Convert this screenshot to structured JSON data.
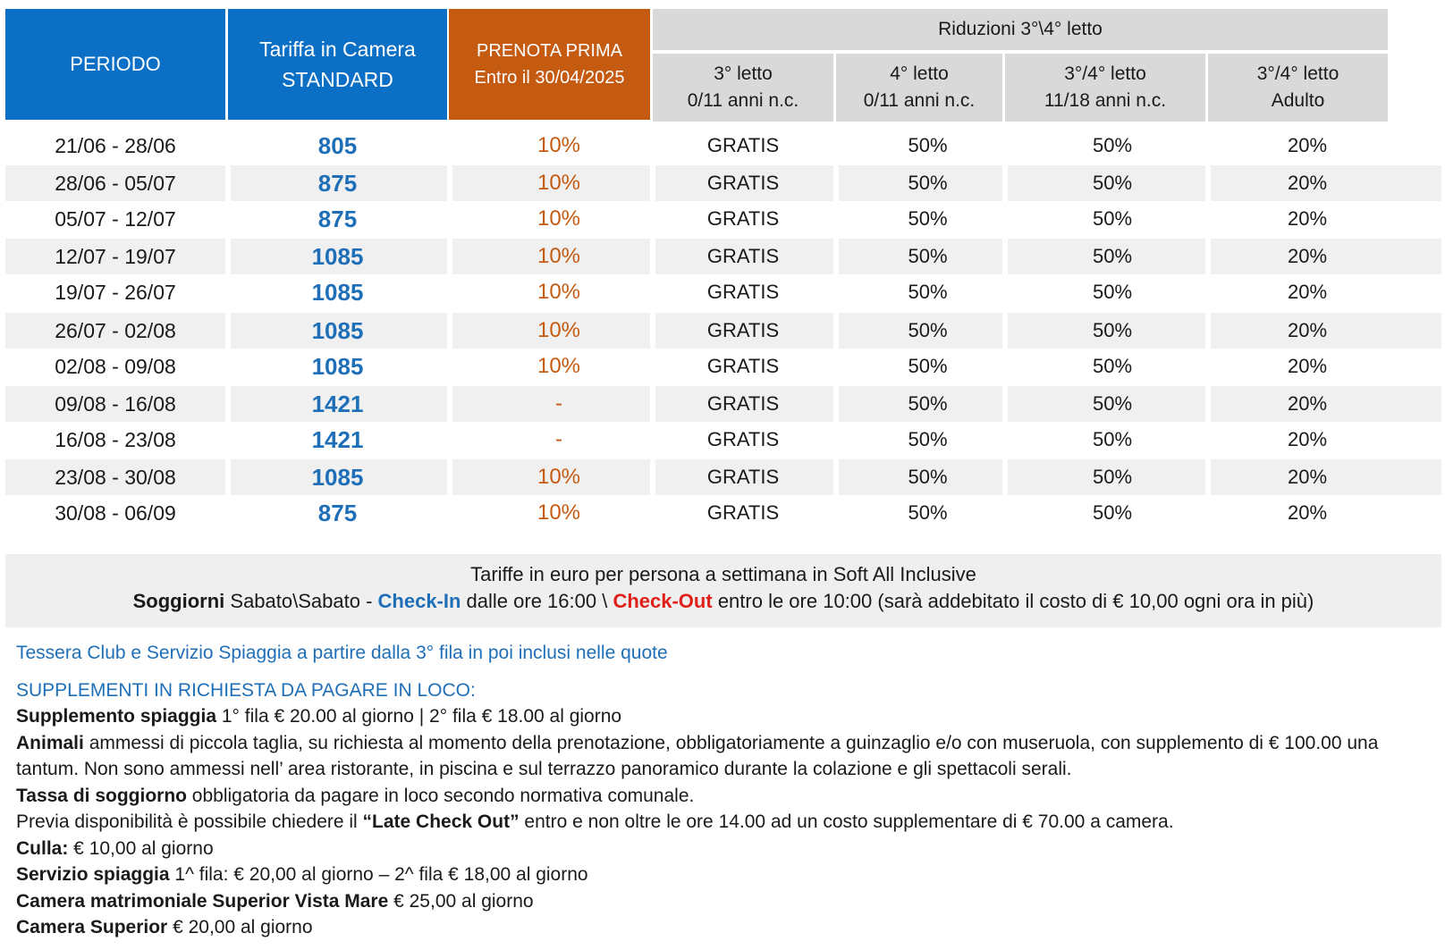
{
  "header": {
    "periodo": "PERIODO",
    "tariffa_line1": "Tariffa in Camera",
    "tariffa_line2": "STANDARD",
    "prenota_line1": "PRENOTA PRIMA",
    "prenota_line2": "Entro il 30/04/2025",
    "riduzioni": "Riduzioni 3°\\4° letto",
    "sub": [
      {
        "line1": "3° letto",
        "line2": "0/11 anni n.c."
      },
      {
        "line1": "4° letto",
        "line2": "0/11 anni n.c."
      },
      {
        "line1": "3°/4° letto",
        "line2": "11/18 anni n.c."
      },
      {
        "line1": "3°/4° letto",
        "line2": "Adulto"
      }
    ]
  },
  "rows": [
    {
      "period": "21/06 - 28/06",
      "price": "805",
      "prenota": "10%",
      "r1": "GRATIS",
      "r2": "50%",
      "r3": "50%",
      "r4": "20%"
    },
    {
      "period": "28/06 - 05/07",
      "price": "875",
      "prenota": "10%",
      "r1": "GRATIS",
      "r2": "50%",
      "r3": "50%",
      "r4": "20%"
    },
    {
      "period": "05/07 - 12/07",
      "price": "875",
      "prenota": "10%",
      "r1": "GRATIS",
      "r2": "50%",
      "r3": "50%",
      "r4": "20%"
    },
    {
      "period": "12/07 - 19/07",
      "price": "1085",
      "prenota": "10%",
      "r1": "GRATIS",
      "r2": "50%",
      "r3": "50%",
      "r4": "20%"
    },
    {
      "period": "19/07 - 26/07",
      "price": "1085",
      "prenota": "10%",
      "r1": "GRATIS",
      "r2": "50%",
      "r3": "50%",
      "r4": "20%"
    },
    {
      "period": "26/07 - 02/08",
      "price": "1085",
      "prenota": "10%",
      "r1": "GRATIS",
      "r2": "50%",
      "r3": "50%",
      "r4": "20%"
    },
    {
      "period": "02/08 - 09/08",
      "price": "1085",
      "prenota": "10%",
      "r1": "GRATIS",
      "r2": "50%",
      "r3": "50%",
      "r4": "20%"
    },
    {
      "period": "09/08 - 16/08",
      "price": "1421",
      "prenota": "-",
      "r1": "GRATIS",
      "r2": "50%",
      "r3": "50%",
      "r4": "20%"
    },
    {
      "period": "16/08 - 23/08",
      "price": "1421",
      "prenota": "-",
      "r1": "GRATIS",
      "r2": "50%",
      "r3": "50%",
      "r4": "20%"
    },
    {
      "period": "23/08 - 30/08",
      "price": "1085",
      "prenota": "10%",
      "r1": "GRATIS",
      "r2": "50%",
      "r3": "50%",
      "r4": "20%"
    },
    {
      "period": "30/08 - 06/09",
      "price": "875",
      "prenota": "10%",
      "r1": "GRATIS",
      "r2": "50%",
      "r3": "50%",
      "r4": "20%"
    }
  ],
  "footer": {
    "line1": "Tariffe in euro per persona a settimana in Soft All Inclusive",
    "soggiorni": "Soggiorni",
    "sabato": " Sabato\\Sabato - ",
    "checkin": "Check-In",
    "checkin_time": " dalle ore 16:00 \\ ",
    "checkout": "Check-Out",
    "checkout_time": " entro le ore 10:00 (sarà addebitato il costo di € 10,00 ogni ora in più)"
  },
  "notes": {
    "tessera": "Tessera Club e Servizio Spiaggia a partire dalla 3° fila in poi inclusi nelle quote",
    "supplementi_title": "SUPPLEMENTI IN RICHIESTA DA PAGARE IN LOCO:",
    "items": [
      {
        "label": "Supplemento spiaggia",
        "text": " 1° fila € 20.00 al giorno | 2° fila € 18.00 al giorno"
      },
      {
        "label": "Animali",
        "text": " ammessi di piccola taglia, su richiesta al momento della prenotazione, obbligatoriamente a guinzaglio e/o con museruola, con supplemento di € 100.00 una tantum. Non sono ammessi nell’ area ristorante, in piscina e sul terrazzo panoramico durante la colazione e gli spettacoli serali."
      },
      {
        "label": "Tassa di soggiorno",
        "text": " obbligatoria da pagare in loco secondo normativa comunale."
      },
      {
        "label": "",
        "text": "Previa disponibilità è possibile chiedere il ",
        "bold_inline": "“Late Check Out”",
        "text_after": " entro e non oltre le ore 14.00 ad un costo supplementare di € 70.00 a camera."
      },
      {
        "label": "Culla:",
        "text": " € 10,00 al giorno"
      },
      {
        "label": "Servizio spiaggia",
        "text": " 1^ fila: € 20,00 al giorno – 2^ fila € 18,00 al giorno"
      },
      {
        "label": "Camera matrimoniale Superior Vista Mare",
        "text": " € 25,00 al giorno"
      },
      {
        "label": "Camera Superior",
        "text": " € 20,00 al giorno"
      }
    ]
  },
  "colors": {
    "header_blue": "#0b6fc6",
    "header_orange": "#c55a11",
    "header_gray": "#d9d9d9",
    "price_blue": "#1f6fb8",
    "discount_orange": "#c55a11",
    "checkout_red": "#e0201b"
  }
}
